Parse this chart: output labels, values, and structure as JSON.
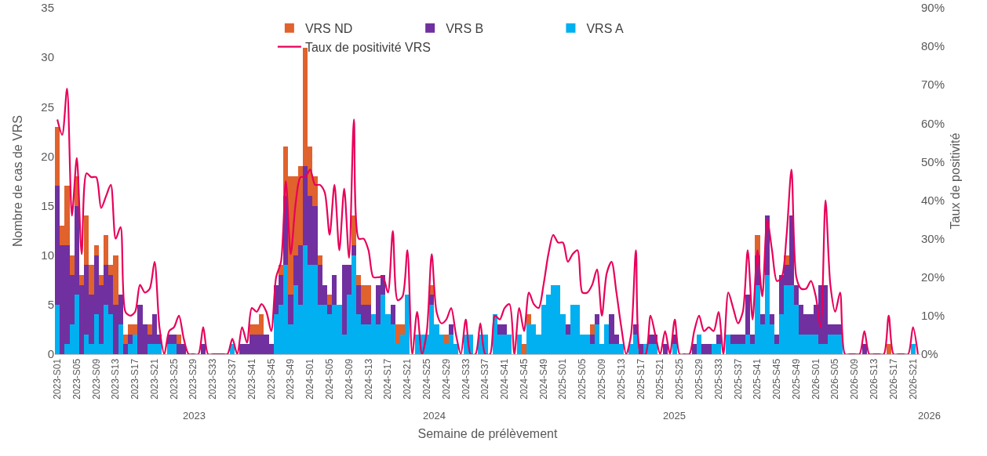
{
  "chart_data": {
    "type": "bar",
    "stacked": true,
    "categories": [
      "2023-S01",
      null,
      null,
      null,
      "2023-S05",
      null,
      null,
      null,
      "2023-S09",
      null,
      null,
      null,
      "2023-S13",
      null,
      null,
      null,
      "2023-S17",
      null,
      null,
      null,
      "2023-S21",
      null,
      null,
      null,
      "2023-S25",
      null,
      null,
      null,
      "2023-S29",
      null,
      null,
      null,
      "2023-S33",
      null,
      null,
      null,
      "2023-S37",
      null,
      null,
      null,
      "2023-S41",
      null,
      null,
      null,
      "2023-S45",
      null,
      null,
      null,
      "2023-S49",
      null,
      null,
      null,
      "2024-S01",
      null,
      null,
      null,
      "2024-S05",
      null,
      null,
      null,
      "2024-S09",
      null,
      null,
      null,
      "2024-S13",
      null,
      null,
      null,
      "2024-S17",
      null,
      null,
      null,
      "2024-S21",
      null,
      null,
      null,
      "2024-S25",
      null,
      null,
      null,
      "2024-S29",
      null,
      null,
      null,
      "2024-S33",
      null,
      null,
      null,
      "2024-S37",
      null,
      null,
      null,
      "2024-S41",
      null,
      null,
      null,
      "2024-S45",
      null,
      null,
      null,
      "2024-S49",
      null,
      null,
      null,
      "2025-S01",
      null,
      null,
      null,
      "2025-S05",
      null,
      null,
      null,
      "2025-S09",
      null,
      null,
      null,
      "2025-S13",
      null,
      null,
      null,
      "2025-S17",
      null,
      null,
      null,
      "2025-S21",
      null,
      null,
      null,
      "2025-S25",
      null,
      null,
      null,
      "2025-S29",
      null,
      null,
      null,
      "2025-S33",
      null,
      null,
      null,
      "2025-S37",
      null,
      null,
      null,
      "2025-S41",
      null,
      null,
      null,
      "2025-S45",
      null,
      null,
      null,
      "2025-S49",
      null,
      null,
      null,
      "2026-S01",
      null,
      null,
      null,
      "2026-S05",
      null,
      null,
      null,
      "2026-S09",
      null,
      null,
      null,
      "2026-S13",
      null,
      null,
      null,
      "2026-S17",
      null,
      null,
      null,
      "2026-S21",
      null
    ],
    "series": [
      {
        "name": "VRS A",
        "color": "#00b0f0",
        "values": [
          5,
          0,
          1,
          3,
          6,
          0,
          2,
          1,
          4,
          1,
          5,
          4,
          0,
          3,
          0,
          1,
          2,
          0,
          0,
          1,
          1,
          1,
          0,
          1,
          1,
          0,
          0,
          0,
          0,
          0,
          0,
          0,
          0,
          0,
          0,
          0,
          1,
          0,
          0,
          0,
          0,
          0,
          0,
          0,
          0,
          4,
          5,
          9,
          3,
          7,
          5,
          11,
          9,
          9,
          5,
          5,
          4,
          5,
          5,
          2,
          6,
          10,
          4,
          3,
          3,
          4,
          3,
          6,
          4,
          3,
          1,
          2,
          6,
          0,
          2,
          2,
          2,
          5,
          3,
          2,
          1,
          2,
          1,
          0,
          2,
          2,
          0,
          2,
          2,
          0,
          4,
          2,
          2,
          2,
          0,
          2,
          0,
          3,
          3,
          2,
          5,
          6,
          7,
          7,
          4,
          2,
          5,
          5,
          2,
          2,
          1,
          3,
          1,
          3,
          1,
          1,
          1,
          0,
          1,
          2,
          0,
          1,
          1,
          1,
          0,
          0,
          0,
          1,
          0,
          0,
          0,
          0,
          2,
          0,
          0,
          1,
          1,
          0,
          2,
          1,
          1,
          1,
          2,
          1,
          7,
          3,
          8,
          3,
          1,
          4,
          7,
          7,
          5,
          2,
          2,
          2,
          2,
          1,
          1,
          2,
          2,
          2,
          0,
          0,
          0,
          0,
          0,
          0,
          0,
          0,
          0,
          0,
          0,
          0,
          0,
          0,
          1,
          0
        ]
      },
      {
        "name": "VRS B",
        "color": "#7030a0",
        "values": [
          12,
          11,
          10,
          5,
          9,
          7,
          7,
          5,
          6,
          6,
          4,
          4,
          5,
          3,
          1,
          1,
          0,
          5,
          3,
          1,
          3,
          1,
          0,
          1,
          1,
          1,
          1,
          0,
          0,
          0,
          1,
          0,
          0,
          0,
          0,
          0,
          0,
          0,
          1,
          1,
          2,
          2,
          2,
          2,
          1,
          3,
          3,
          7,
          3,
          3,
          6,
          8,
          7,
          6,
          4,
          2,
          1,
          3,
          0,
          7,
          3,
          1,
          3,
          2,
          2,
          0,
          4,
          2,
          0,
          2,
          0,
          0,
          0,
          0,
          0,
          0,
          0,
          1,
          0,
          0,
          0,
          1,
          0,
          0,
          0,
          0,
          0,
          0,
          0,
          0,
          0,
          1,
          1,
          0,
          0,
          0,
          0,
          0,
          0,
          0,
          0,
          0,
          0,
          0,
          0,
          1,
          0,
          0,
          0,
          0,
          1,
          1,
          0,
          0,
          3,
          1,
          0,
          0,
          0,
          1,
          1,
          0,
          1,
          1,
          0,
          1,
          0,
          1,
          0,
          0,
          0,
          1,
          0,
          1,
          1,
          0,
          1,
          0,
          0,
          1,
          1,
          1,
          4,
          1,
          3,
          1,
          6,
          1,
          1,
          4,
          2,
          7,
          2,
          3,
          2,
          2,
          3,
          6,
          6,
          1,
          1,
          1,
          0,
          0,
          0,
          0,
          1,
          0,
          0,
          0,
          0,
          0,
          0,
          0,
          0,
          0,
          0,
          0
        ]
      },
      {
        "name": "VRS ND",
        "color": "#e0622c",
        "values": [
          6,
          2,
          6,
          2,
          3,
          1,
          5,
          3,
          1,
          1,
          3,
          1,
          5,
          0,
          1,
          1,
          1,
          0,
          0,
          1,
          0,
          0,
          0,
          0,
          0,
          1,
          0,
          0,
          0,
          0,
          0,
          0,
          0,
          0,
          0,
          0,
          0,
          0,
          0,
          0,
          1,
          1,
          2,
          0,
          0,
          0,
          1,
          5,
          12,
          8,
          8,
          12,
          5,
          3,
          1,
          0,
          1,
          0,
          0,
          0,
          0,
          3,
          1,
          2,
          2,
          0,
          0,
          0,
          0,
          0,
          2,
          1,
          0,
          0,
          0,
          0,
          0,
          1,
          0,
          0,
          1,
          0,
          0,
          0,
          0,
          0,
          0,
          0,
          0,
          0,
          0,
          0,
          0,
          0,
          0,
          0,
          1,
          1,
          0,
          0,
          0,
          0,
          0,
          0,
          0,
          0,
          0,
          0,
          0,
          0,
          1,
          0,
          0,
          0,
          0,
          0,
          0,
          0,
          0,
          0,
          0,
          0,
          0,
          0,
          0,
          0,
          0,
          0,
          0,
          0,
          0,
          0,
          0,
          0,
          0,
          0,
          0,
          0,
          0,
          0,
          0,
          0,
          0,
          0,
          2,
          0,
          0,
          0,
          0,
          0,
          1,
          0,
          0,
          0,
          0,
          0,
          0,
          0,
          0,
          0,
          0,
          0,
          0,
          0,
          0,
          0,
          0,
          0,
          0,
          0,
          0,
          1,
          0,
          0,
          0,
          0,
          0,
          0
        ]
      },
      {
        "name": "Taux de positivité VRS",
        "color": "#e8005a",
        "type": "line",
        "axis": "y2",
        "values": [
          61,
          57,
          69,
          36,
          51,
          26,
          47,
          46,
          46,
          38,
          41,
          44,
          30,
          33,
          11,
          10,
          11,
          18,
          16,
          17,
          24,
          7,
          0,
          6,
          7,
          10,
          4,
          0,
          0,
          0,
          7,
          0,
          0,
          0,
          0,
          0,
          4,
          0,
          7,
          3,
          12,
          11,
          13,
          11,
          6,
          20,
          24,
          45,
          26,
          39,
          46,
          46,
          48,
          44,
          44,
          42,
          31,
          44,
          27,
          43,
          25,
          61,
          30,
          30,
          27,
          20,
          20,
          20,
          16,
          32,
          14,
          15,
          27,
          0,
          11,
          0,
          6,
          26,
          11,
          8,
          9,
          12,
          5,
          0,
          9,
          0,
          0,
          8,
          0,
          0,
          10,
          9,
          12,
          13,
          0,
          12,
          6,
          16,
          13,
          12,
          18,
          26,
          31,
          29,
          29,
          24,
          26,
          27,
          16,
          16,
          18,
          22,
          10,
          21,
          24,
          16,
          7,
          0,
          5,
          27,
          0,
          0,
          10,
          5,
          0,
          6,
          0,
          9,
          0,
          0,
          0,
          6,
          10,
          6,
          7,
          6,
          11,
          0,
          16,
          12,
          8,
          11,
          27,
          9,
          27,
          15,
          35,
          27,
          19,
          20,
          31,
          48,
          20,
          17,
          17,
          19,
          15,
          7,
          40,
          18,
          11,
          16,
          0,
          0,
          0,
          0,
          6,
          0,
          0,
          0,
          0,
          10,
          0,
          0,
          0,
          0,
          7,
          0
        ]
      }
    ],
    "ylim": [
      0,
      35
    ],
    "yticks": [
      0,
      5,
      10,
      15,
      20,
      25,
      30,
      35
    ],
    "y2lim": [
      0,
      90
    ],
    "y2ticks": [
      {
        "value": 0,
        "label": "0%"
      },
      {
        "value": 10,
        "label": "10%"
      },
      {
        "value": 20,
        "label": "20%"
      },
      {
        "value": 30,
        "label": "30%"
      },
      {
        "value": 40,
        "label": "40%"
      },
      {
        "value": 50,
        "label": "50%"
      },
      {
        "value": 60,
        "label": "60%"
      },
      {
        "value": 70,
        "label": "70%"
      },
      {
        "value": 80,
        "label": "80%"
      },
      {
        "value": 90,
        "label": "90%"
      }
    ],
    "xlabel": "Semaine de prélèvement",
    "ylabel": "Nombre de cas de VRS",
    "y2label": "Taux de positivité",
    "annotations": [
      "2023",
      "2024",
      "2025",
      "2026"
    ],
    "legend": "top",
    "grid": false,
    "line_style": "solid",
    "marker": "none"
  }
}
